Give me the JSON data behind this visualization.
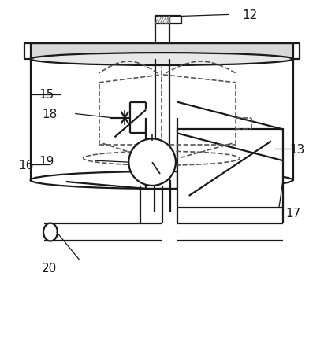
{
  "bg_color": "#ffffff",
  "lc": "#1a1a1a",
  "dc": "#555555",
  "lw": 1.6,
  "lwd": 1.2,
  "fs": 11,
  "figsize": [
    4.11,
    4.6
  ],
  "dpi": 100
}
